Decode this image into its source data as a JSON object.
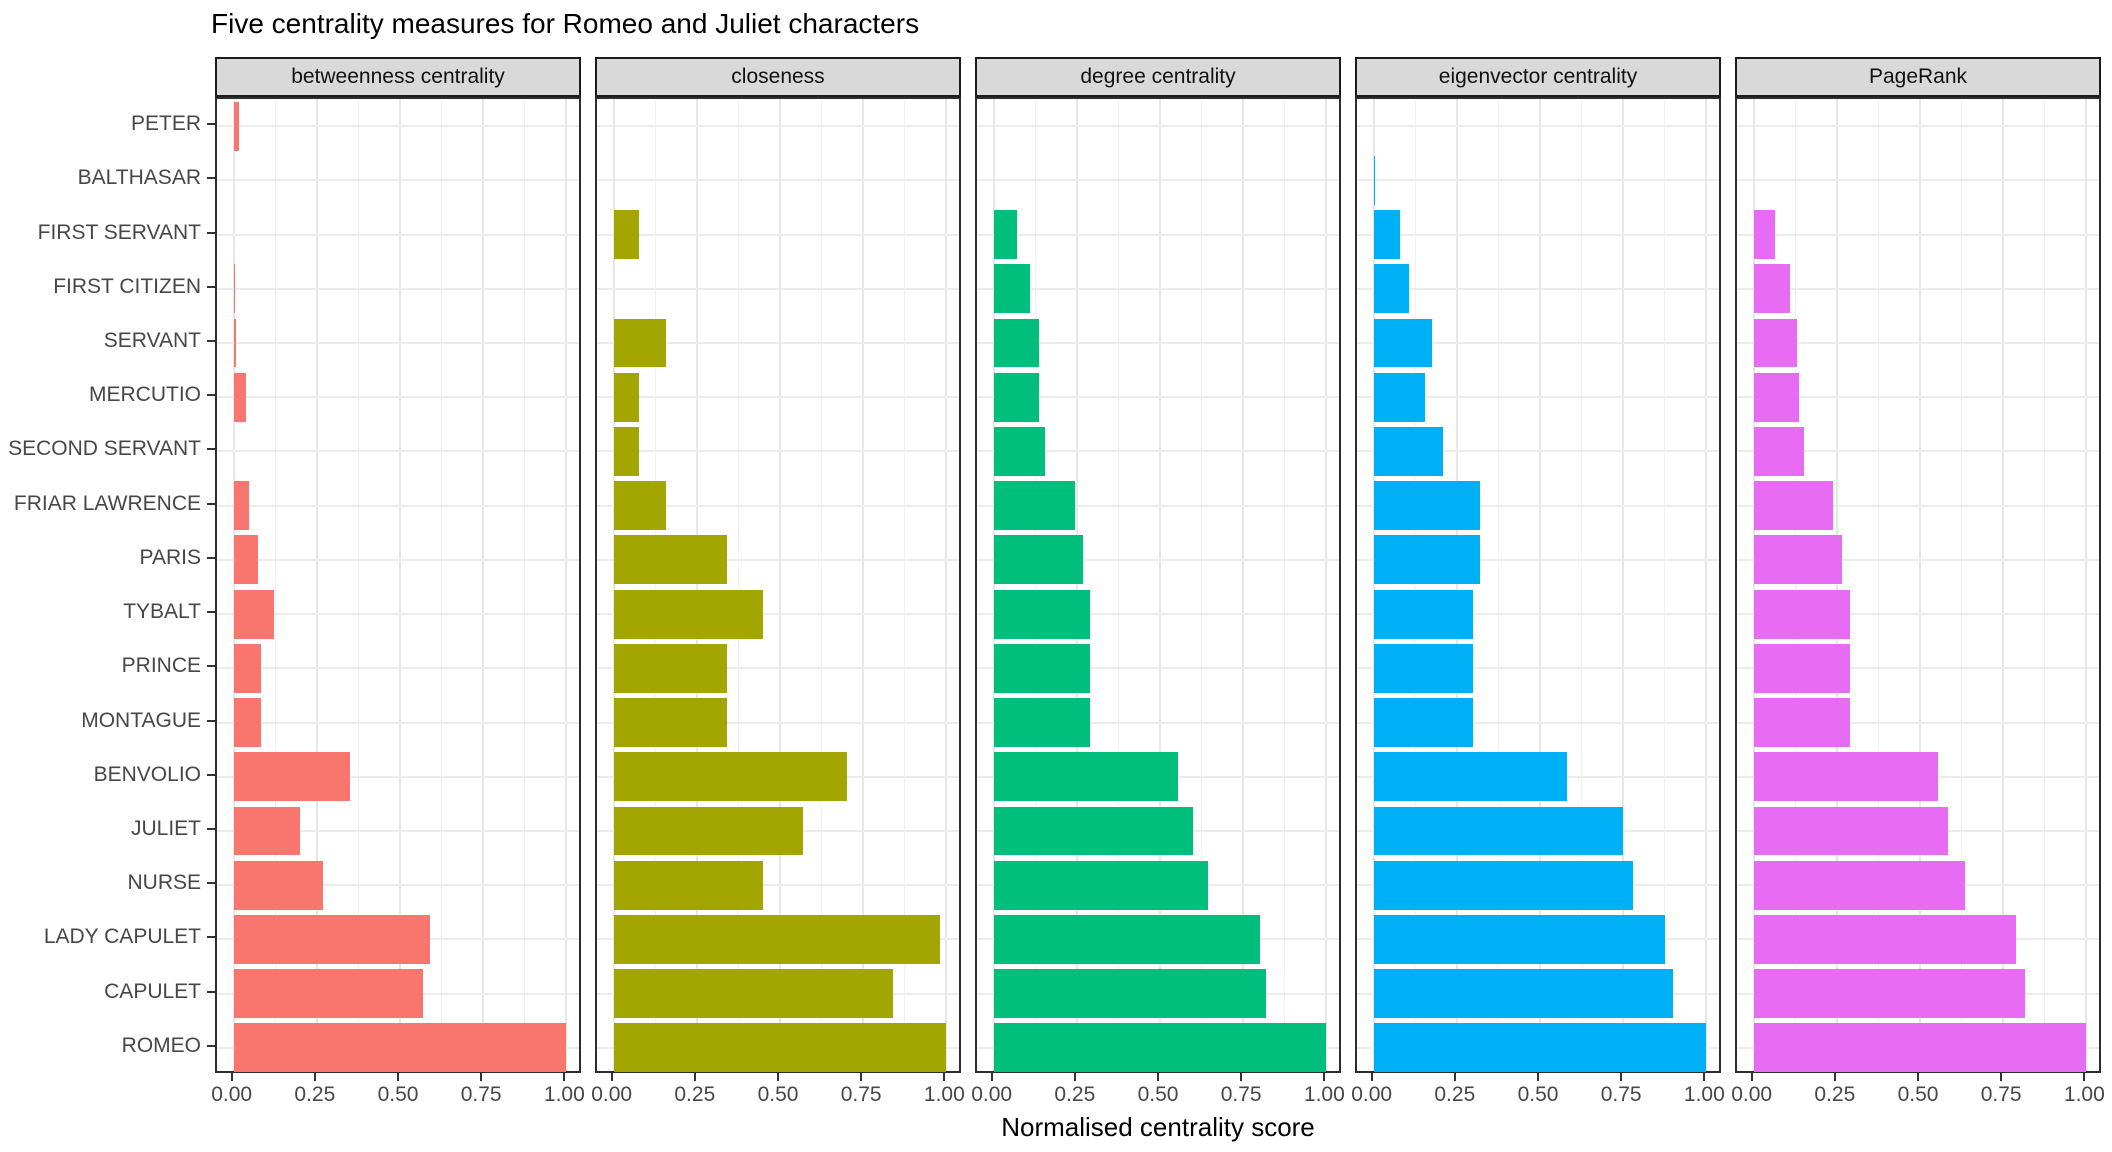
{
  "title": "Five centrality measures for Romeo and Juliet characters",
  "x_axis": {
    "title": "Normalised centrality score",
    "tick_labels": [
      "0.00",
      "0.25",
      "0.50",
      "0.75",
      "1.00"
    ],
    "tick_values": [
      0,
      0.25,
      0.5,
      0.75,
      1
    ]
  },
  "chart_data": {
    "type": "bar",
    "orientation": "horizontal",
    "title": "Five centrality measures for Romeo and Juliet characters",
    "xlabel": "Normalised centrality score",
    "ylabel": "",
    "xlim": [
      0,
      1
    ],
    "grid": "on",
    "legend": "none",
    "facet_layout": "5 panels in one row, shared y axis",
    "categories_top_to_bottom": [
      "PETER",
      "BALTHASAR",
      "FIRST SERVANT",
      "FIRST CITIZEN",
      "SERVANT",
      "MERCUTIO",
      "SECOND SERVANT",
      "FRIAR LAWRENCE",
      "PARIS",
      "TYBALT",
      "PRINCE",
      "MONTAGUE",
      "BENVOLIO",
      "JULIET",
      "NURSE",
      "LADY CAPULET",
      "CAPULET",
      "ROMEO"
    ],
    "facets": [
      {
        "label": "betweenness centrality",
        "color": "#F8766D",
        "values": [
          0.015,
          0,
          0,
          0.004,
          0.008,
          0.036,
          0,
          0.045,
          0.072,
          0.12,
          0.081,
          0.081,
          0.35,
          0.2,
          0.27,
          0.59,
          0.57,
          1.0
        ]
      },
      {
        "label": "closeness",
        "color": "#A3A500",
        "values": [
          0,
          0,
          0.075,
          0,
          0.156,
          0.075,
          0.075,
          0.156,
          0.34,
          0.45,
          0.34,
          0.34,
          0.7,
          0.57,
          0.45,
          0.98,
          0.84,
          1.0
        ]
      },
      {
        "label": "degree centrality",
        "color": "#00BF7D",
        "values": [
          0,
          0,
          0.07,
          0.11,
          0.135,
          0.135,
          0.155,
          0.245,
          0.27,
          0.29,
          0.29,
          0.29,
          0.555,
          0.6,
          0.645,
          0.8,
          0.82,
          1.0
        ]
      },
      {
        "label": "eigenvector centrality",
        "color": "#00B0F6",
        "values": [
          0,
          0.004,
          0.08,
          0.105,
          0.175,
          0.155,
          0.21,
          0.32,
          0.32,
          0.3,
          0.3,
          0.3,
          0.58,
          0.75,
          0.78,
          0.875,
          0.9,
          1.0
        ]
      },
      {
        "label": "PageRank",
        "color": "#E76BF3",
        "values": [
          0,
          0,
          0.065,
          0.11,
          0.13,
          0.135,
          0.15,
          0.24,
          0.265,
          0.29,
          0.29,
          0.29,
          0.555,
          0.585,
          0.635,
          0.79,
          0.815,
          1.0
        ]
      }
    ],
    "minor_grid_values": [
      0.125,
      0.375,
      0.625,
      0.875
    ]
  },
  "style": {
    "strip_background": "#D9D9D9",
    "panel_border": "#2d2d2d",
    "grid_major": "#E7E7E7",
    "grid_minor": "#F2F2F2",
    "axis_text_color": "#474747",
    "title_color": "#000000"
  }
}
